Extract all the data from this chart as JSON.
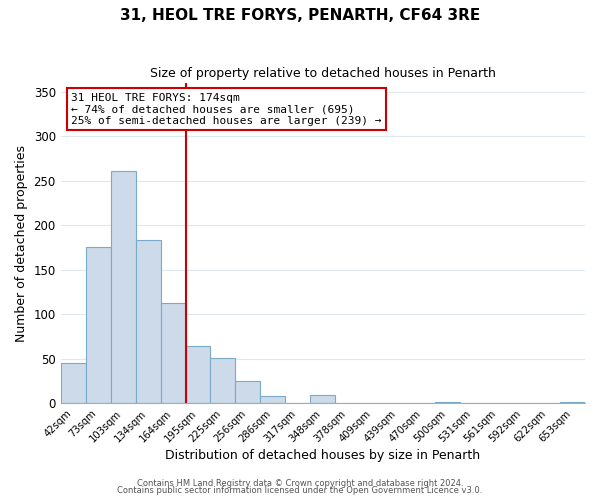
{
  "title": "31, HEOL TRE FORYS, PENARTH, CF64 3RE",
  "subtitle": "Size of property relative to detached houses in Penarth",
  "xlabel": "Distribution of detached houses by size in Penarth",
  "ylabel": "Number of detached properties",
  "bar_labels": [
    "42sqm",
    "73sqm",
    "103sqm",
    "134sqm",
    "164sqm",
    "195sqm",
    "225sqm",
    "256sqm",
    "286sqm",
    "317sqm",
    "348sqm",
    "378sqm",
    "409sqm",
    "439sqm",
    "470sqm",
    "500sqm",
    "531sqm",
    "561sqm",
    "592sqm",
    "622sqm",
    "653sqm"
  ],
  "bar_values": [
    45,
    176,
    261,
    184,
    113,
    65,
    51,
    25,
    8,
    0,
    9,
    0,
    0,
    0,
    0,
    2,
    0,
    0,
    0,
    0,
    2
  ],
  "bar_color": "#ccdaea",
  "bar_edge_color": "#7aaac8",
  "ylim": [
    0,
    360
  ],
  "yticks": [
    0,
    50,
    100,
    150,
    200,
    250,
    300,
    350
  ],
  "vline_x_index": 4.5,
  "vline_color": "#cc0000",
  "annotation_title": "31 HEOL TRE FORYS: 174sqm",
  "annotation_line1": "← 74% of detached houses are smaller (695)",
  "annotation_line2": "25% of semi-detached houses are larger (239) →",
  "annotation_box_color": "#ffffff",
  "annotation_box_edge": "#cc0000",
  "footer_line1": "Contains HM Land Registry data © Crown copyright and database right 2024.",
  "footer_line2": "Contains public sector information licensed under the Open Government Licence v3.0.",
  "background_color": "#ffffff",
  "grid_color": "#dde8f0"
}
